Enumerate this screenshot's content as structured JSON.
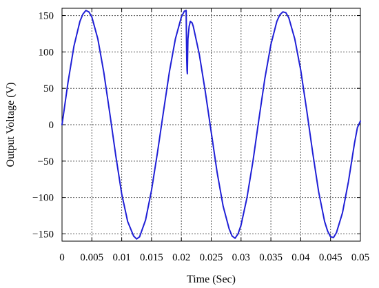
{
  "chart_data": {
    "type": "line",
    "title": "",
    "xlabel": "Time (Sec)",
    "ylabel": "Output Voltage (V)",
    "xlim": [
      0,
      0.05
    ],
    "ylim": [
      -160,
      160
    ],
    "grid": true,
    "x_ticks": [
      {
        "value": 0,
        "label": "0"
      },
      {
        "value": 0.005,
        "label": "0.005"
      },
      {
        "value": 0.01,
        "label": "0.01"
      },
      {
        "value": 0.015,
        "label": "0.015"
      },
      {
        "value": 0.02,
        "label": "0.02"
      },
      {
        "value": 0.025,
        "label": "0.025"
      },
      {
        "value": 0.03,
        "label": "0.03"
      },
      {
        "value": 0.035,
        "label": "0.035"
      },
      {
        "value": 0.04,
        "label": "0.04"
      },
      {
        "value": 0.045,
        "label": "0.045"
      },
      {
        "value": 0.05,
        "label": "0.05"
      }
    ],
    "y_ticks": [
      {
        "value": 150,
        "label": "150"
      },
      {
        "value": 100,
        "label": "100"
      },
      {
        "value": 50,
        "label": "50"
      },
      {
        "value": 0,
        "label": "0"
      },
      {
        "value": -50,
        "label": "−50"
      },
      {
        "value": -100,
        "label": "−100"
      },
      {
        "value": -150,
        "label": "−150"
      }
    ],
    "colors": {
      "series": "#1f1fd6",
      "grid": "#555555",
      "axis": "#000000"
    },
    "series": [
      {
        "points": [
          [
            0,
            0
          ],
          [
            0.001,
            58
          ],
          [
            0.002,
            108
          ],
          [
            0.003,
            142
          ],
          [
            0.0035,
            152
          ],
          [
            0.004,
            157
          ],
          [
            0.0045,
            155
          ],
          [
            0.005,
            148
          ],
          [
            0.006,
            118
          ],
          [
            0.007,
            72
          ],
          [
            0.008,
            16
          ],
          [
            0.009,
            -42
          ],
          [
            0.01,
            -95
          ],
          [
            0.011,
            -133
          ],
          [
            0.012,
            -153
          ],
          [
            0.0125,
            -157
          ],
          [
            0.013,
            -154
          ],
          [
            0.014,
            -131
          ],
          [
            0.015,
            -90
          ],
          [
            0.016,
            -38
          ],
          [
            0.017,
            18
          ],
          [
            0.018,
            73
          ],
          [
            0.019,
            118
          ],
          [
            0.02,
            148
          ],
          [
            0.0205,
            156
          ],
          [
            0.0208,
            157
          ],
          [
            0.02085,
            120
          ],
          [
            0.0209,
            90
          ],
          [
            0.02095,
            75
          ],
          [
            0.021,
            70
          ],
          [
            0.02105,
            95
          ],
          [
            0.0211,
            118
          ],
          [
            0.0213,
            135
          ],
          [
            0.0215,
            142
          ],
          [
            0.0218,
            140
          ],
          [
            0.022,
            135
          ],
          [
            0.023,
            97
          ],
          [
            0.024,
            46
          ],
          [
            0.025,
            -10
          ],
          [
            0.026,
            -66
          ],
          [
            0.027,
            -112
          ],
          [
            0.028,
            -143
          ],
          [
            0.0285,
            -153
          ],
          [
            0.029,
            -156
          ],
          [
            0.0295,
            -150
          ],
          [
            0.03,
            -138
          ],
          [
            0.031,
            -100
          ],
          [
            0.032,
            -50
          ],
          [
            0.033,
            8
          ],
          [
            0.034,
            64
          ],
          [
            0.035,
            110
          ],
          [
            0.036,
            142
          ],
          [
            0.0365,
            151
          ],
          [
            0.037,
            155
          ],
          [
            0.0375,
            154
          ],
          [
            0.038,
            147
          ],
          [
            0.039,
            118
          ],
          [
            0.04,
            75
          ],
          [
            0.041,
            20
          ],
          [
            0.042,
            -38
          ],
          [
            0.043,
            -92
          ],
          [
            0.044,
            -133
          ],
          [
            0.0445,
            -146
          ],
          [
            0.045,
            -154
          ],
          [
            0.0455,
            -155
          ],
          [
            0.046,
            -148
          ],
          [
            0.047,
            -121
          ],
          [
            0.048,
            -78
          ],
          [
            0.049,
            -26
          ],
          [
            0.0495,
            -4
          ],
          [
            0.05,
            5
          ]
        ]
      }
    ]
  }
}
